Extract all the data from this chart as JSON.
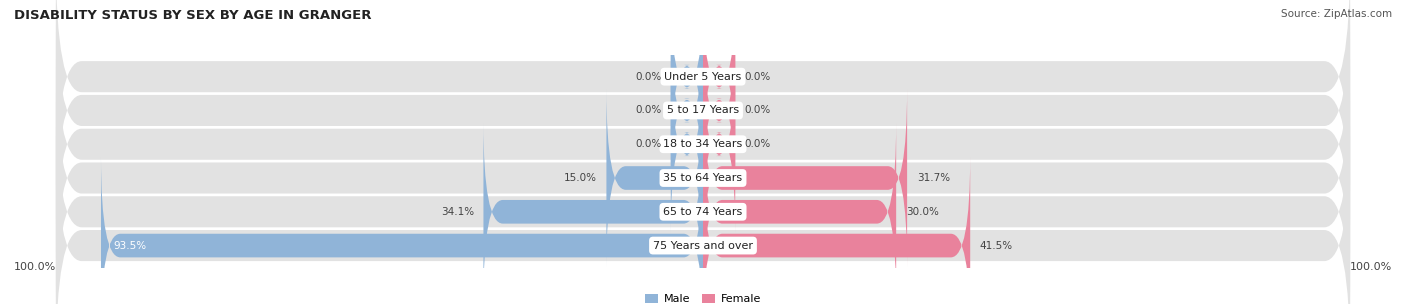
{
  "title": "DISABILITY STATUS BY SEX BY AGE IN GRANGER",
  "source": "Source: ZipAtlas.com",
  "categories": [
    "Under 5 Years",
    "5 to 17 Years",
    "18 to 34 Years",
    "35 to 64 Years",
    "65 to 74 Years",
    "75 Years and over"
  ],
  "male_values": [
    0.0,
    0.0,
    0.0,
    15.0,
    34.1,
    93.5
  ],
  "female_values": [
    0.0,
    0.0,
    0.0,
    31.7,
    30.0,
    41.5
  ],
  "male_color": "#90b4d8",
  "female_color": "#e9829c",
  "male_label": "Male",
  "female_label": "Female",
  "bg_row_color": "#e2e2e2",
  "max_val": 100.0,
  "title_fontsize": 9.5,
  "source_fontsize": 7.5,
  "value_fontsize": 7.5,
  "category_fontsize": 8,
  "legend_fontsize": 8,
  "zero_bar_width": 5.0
}
